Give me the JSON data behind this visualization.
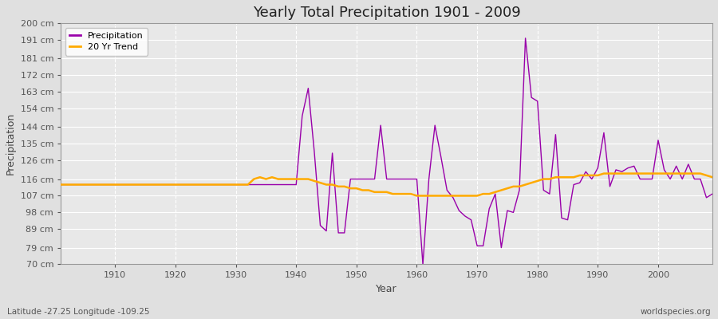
{
  "title": "Yearly Total Precipitation 1901 - 2009",
  "xlabel": "Year",
  "ylabel": "Precipitation",
  "subtitle": "Latitude -27.25 Longitude -109.25",
  "watermark": "worldspecies.org",
  "background_color": "#e0e0e0",
  "plot_bg_color": "#e8e8e8",
  "grid_color": "#ffffff",
  "precip_color": "#9900aa",
  "trend_color": "#ffaa00",
  "ylim": [
    70,
    200
  ],
  "xlim": [
    1901,
    2009
  ],
  "yticks": [
    70,
    79,
    89,
    98,
    107,
    116,
    126,
    135,
    144,
    154,
    163,
    172,
    181,
    191,
    200
  ],
  "xticks": [
    1910,
    1920,
    1930,
    1940,
    1950,
    1960,
    1970,
    1980,
    1990,
    2000
  ],
  "years": [
    1901,
    1902,
    1903,
    1904,
    1905,
    1906,
    1907,
    1908,
    1909,
    1910,
    1911,
    1912,
    1913,
    1914,
    1915,
    1916,
    1917,
    1918,
    1919,
    1920,
    1921,
    1922,
    1923,
    1924,
    1925,
    1926,
    1927,
    1928,
    1929,
    1930,
    1931,
    1932,
    1933,
    1934,
    1935,
    1936,
    1937,
    1938,
    1939,
    1940,
    1941,
    1942,
    1943,
    1944,
    1945,
    1946,
    1947,
    1948,
    1949,
    1950,
    1951,
    1952,
    1953,
    1954,
    1955,
    1956,
    1957,
    1958,
    1959,
    1960,
    1961,
    1962,
    1963,
    1964,
    1965,
    1966,
    1967,
    1968,
    1969,
    1970,
    1971,
    1972,
    1973,
    1974,
    1975,
    1976,
    1977,
    1978,
    1979,
    1980,
    1981,
    1982,
    1983,
    1984,
    1985,
    1986,
    1987,
    1988,
    1989,
    1990,
    1991,
    1992,
    1993,
    1994,
    1995,
    1996,
    1997,
    1998,
    1999,
    2000,
    2001,
    2002,
    2003,
    2004,
    2005,
    2006,
    2007,
    2008,
    2009
  ],
  "precip": [
    113,
    113,
    113,
    113,
    113,
    113,
    113,
    113,
    113,
    113,
    113,
    113,
    113,
    113,
    113,
    113,
    113,
    113,
    113,
    113,
    113,
    113,
    113,
    113,
    113,
    113,
    113,
    113,
    113,
    113,
    113,
    113,
    113,
    113,
    113,
    113,
    113,
    113,
    113,
    113,
    150,
    165,
    131,
    91,
    88,
    130,
    87,
    87,
    116,
    116,
    116,
    116,
    116,
    145,
    116,
    116,
    116,
    116,
    116,
    116,
    70,
    116,
    145,
    128,
    110,
    106,
    99,
    96,
    94,
    80,
    80,
    100,
    108,
    79,
    99,
    98,
    110,
    192,
    160,
    158,
    110,
    108,
    140,
    95,
    94,
    113,
    114,
    120,
    116,
    122,
    141,
    112,
    121,
    120,
    122,
    123,
    116,
    116,
    116,
    137,
    121,
    116,
    123,
    116,
    124,
    116,
    116,
    106,
    108
  ],
  "trend": [
    113,
    113,
    113,
    113,
    113,
    113,
    113,
    113,
    113,
    113,
    113,
    113,
    113,
    113,
    113,
    113,
    113,
    113,
    113,
    113,
    113,
    113,
    113,
    113,
    113,
    113,
    113,
    113,
    113,
    113,
    113,
    113,
    116,
    117,
    116,
    117,
    116,
    116,
    116,
    116,
    116,
    116,
    115,
    114,
    113,
    113,
    112,
    112,
    111,
    111,
    110,
    110,
    109,
    109,
    109,
    108,
    108,
    108,
    108,
    107,
    107,
    107,
    107,
    107,
    107,
    107,
    107,
    107,
    107,
    107,
    108,
    108,
    109,
    110,
    111,
    112,
    112,
    113,
    114,
    115,
    116,
    116,
    117,
    117,
    117,
    117,
    118,
    118,
    118,
    118,
    119,
    119,
    119,
    119,
    119,
    119,
    119,
    119,
    119,
    119,
    119,
    119,
    119,
    119,
    119,
    119,
    119,
    118,
    117
  ]
}
